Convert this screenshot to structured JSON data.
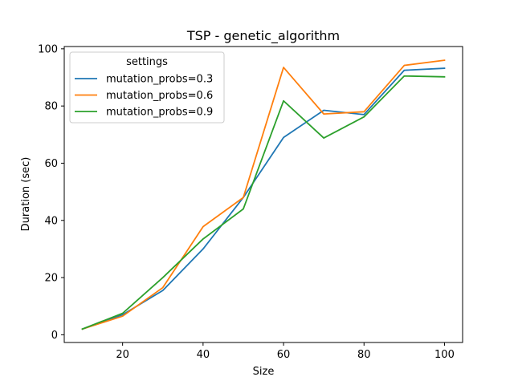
{
  "chart_data": {
    "type": "line",
    "title": "TSP - genetic_algorithm",
    "xlabel": "Size",
    "ylabel": "Duration (sec)",
    "x": [
      10,
      20,
      30,
      40,
      50,
      60,
      70,
      80,
      90,
      100
    ],
    "xlim": [
      5.5,
      104.5
    ],
    "ylim": [
      -2.7,
      100.8
    ],
    "xticks": [
      20,
      40,
      60,
      80,
      100
    ],
    "yticks": [
      0,
      20,
      40,
      60,
      80,
      100
    ],
    "grid": false,
    "legend": {
      "title": "settings",
      "placement": "top-left"
    },
    "series": [
      {
        "name": "mutation_probs=0.3",
        "color": "#1f77b4",
        "values": [
          2.0,
          7.0,
          15.5,
          30.0,
          48.0,
          69.0,
          78.5,
          77.0,
          92.5,
          93.2
        ]
      },
      {
        "name": "mutation_probs=0.6",
        "color": "#ff7f0e",
        "values": [
          2.0,
          6.5,
          16.5,
          37.8,
          48.0,
          93.5,
          77.2,
          78.0,
          94.2,
          96.0
        ]
      },
      {
        "name": "mutation_probs=0.9",
        "color": "#2ca02c",
        "values": [
          2.0,
          7.5,
          20.0,
          33.5,
          44.0,
          81.8,
          68.8,
          76.2,
          90.5,
          90.2
        ]
      }
    ]
  }
}
